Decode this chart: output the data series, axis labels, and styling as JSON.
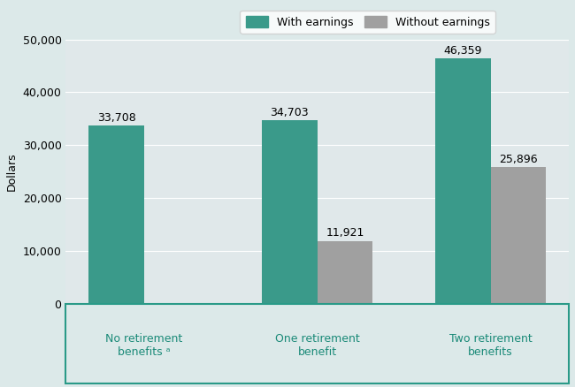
{
  "categories": [
    "No retirement\nbenefits ᵃ",
    "One retirement\nbenefit",
    "Two retirement\nbenefits"
  ],
  "with_earnings": [
    33708,
    34703,
    46359
  ],
  "without_earnings_values": [
    11921,
    25896
  ],
  "without_earnings_indices": [
    1,
    2
  ],
  "with_earnings_labels": [
    "33,708",
    "34,703",
    "46,359"
  ],
  "without_earnings_labels": [
    "11,921",
    "25,896"
  ],
  "color_with": "#3a9a8a",
  "color_without": "#a0a0a0",
  "ylabel": "Dollars",
  "ylim": [
    0,
    50000
  ],
  "yticks": [
    0,
    10000,
    20000,
    30000,
    40000,
    50000
  ],
  "ytick_labels": [
    "0",
    "10,000",
    "20,000",
    "30,000",
    "40,000",
    "50,000"
  ],
  "legend_with": "With earnings",
  "legend_without": "Without earnings",
  "bar_width": 0.32,
  "background_color": "#dce9e9",
  "plot_bg_color": "#e0e8ea",
  "label_fontsize": 9,
  "tick_fontsize": 9,
  "annotation_fontsize": 9,
  "xtick_color": "#1a8a78",
  "border_color": "#2a9a88"
}
